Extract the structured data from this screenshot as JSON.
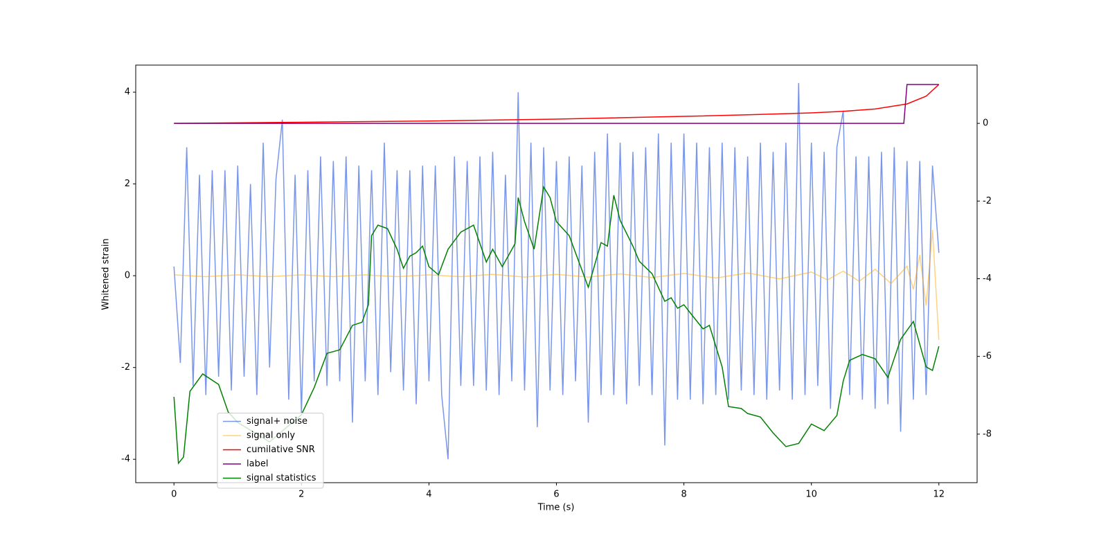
{
  "chart_data": {
    "type": "line",
    "xlabel": "Time (s)",
    "ylabel": "Whitened strain",
    "xlim": [
      -0.6,
      12.6
    ],
    "xticks": [
      0,
      2,
      4,
      6,
      8,
      10,
      12
    ],
    "ylim": [
      -4.51,
      4.59
    ],
    "yticks": [
      -4,
      -2,
      0,
      2,
      4
    ],
    "y2lim": [
      -9.25,
      1.5
    ],
    "y2ticks": [
      -8,
      -6,
      -4,
      -2,
      0
    ],
    "legend": "lower left",
    "series": [
      {
        "name": "signal+ noise",
        "color": "#4169e1",
        "opacity": 0.7,
        "x": [
          0,
          0.1,
          0.2,
          0.3,
          0.4,
          0.5,
          0.6,
          0.7,
          0.8,
          0.9,
          1,
          1.1,
          1.2,
          1.3,
          1.4,
          1.5,
          1.6,
          1.7,
          1.8,
          1.9,
          2,
          2.1,
          2.2,
          2.3,
          2.4,
          2.5,
          2.6,
          2.7,
          2.8,
          2.9,
          3,
          3.1,
          3.2,
          3.3,
          3.4,
          3.5,
          3.6,
          3.7,
          3.8,
          3.9,
          4,
          4.1,
          4.2,
          4.3,
          4.4,
          4.5,
          4.6,
          4.7,
          4.8,
          4.9,
          5,
          5.1,
          5.2,
          5.3,
          5.4,
          5.5,
          5.6,
          5.7,
          5.8,
          5.9,
          6,
          6.1,
          6.2,
          6.3,
          6.4,
          6.5,
          6.6,
          6.7,
          6.8,
          6.9,
          7,
          7.1,
          7.2,
          7.3,
          7.4,
          7.5,
          7.6,
          7.7,
          7.8,
          7.9,
          8,
          8.1,
          8.2,
          8.3,
          8.4,
          8.5,
          8.6,
          8.7,
          8.8,
          8.9,
          9,
          9.1,
          9.2,
          9.3,
          9.4,
          9.5,
          9.6,
          9.7,
          9.8,
          9.9,
          10,
          10.1,
          10.2,
          10.3,
          10.4,
          10.5,
          10.6,
          10.7,
          10.8,
          10.9,
          11,
          11.1,
          11.2,
          11.3,
          11.4,
          11.5,
          11.6,
          11.7,
          11.8,
          11.9,
          12
        ],
        "values": [
          0.2,
          -1.9,
          2.8,
          -2.4,
          2.2,
          -2.6,
          2.3,
          -2.2,
          2.3,
          -2.5,
          2.4,
          -2.2,
          2.0,
          -2.6,
          2.9,
          -2.0,
          2.1,
          3.4,
          -2.7,
          2.2,
          -3.0,
          2.3,
          -2.3,
          2.6,
          -2.4,
          2.5,
          -2.3,
          2.6,
          -3.2,
          2.4,
          -2.3,
          2.3,
          -2.6,
          2.9,
          -2.1,
          2.3,
          -2.5,
          2.3,
          -2.8,
          2.4,
          -2.3,
          2.4,
          -2.6,
          -4.0,
          2.6,
          -2.4,
          2.5,
          -2.4,
          2.6,
          -2.5,
          2.7,
          -2.6,
          2.2,
          -2.3,
          4.0,
          -2.5,
          2.9,
          -3.3,
          2.8,
          -2.5,
          2.5,
          -2.6,
          2.6,
          -2.3,
          2.4,
          -3.2,
          2.7,
          -2.6,
          3.1,
          -2.6,
          2.9,
          -2.8,
          2.7,
          -2.4,
          2.8,
          -2.6,
          3.1,
          -3.7,
          2.9,
          -2.7,
          3.1,
          -2.7,
          2.9,
          -2.8,
          2.8,
          -2.6,
          2.9,
          -2.7,
          2.8,
          -2.5,
          2.6,
          -2.6,
          2.9,
          -2.7,
          2.7,
          -2.5,
          2.9,
          -2.7,
          4.2,
          -2.6,
          2.9,
          -2.4,
          2.7,
          -2.9,
          2.8,
          3.6,
          -2.6,
          2.6,
          -2.7,
          2.6,
          -2.9,
          2.7,
          -2.8,
          2.8,
          -3.4,
          2.5,
          -2.7,
          2.5,
          -2.6,
          2.4,
          0.5
        ]
      },
      {
        "name": "signal only",
        "color": "#ffa500",
        "opacity": 0.5,
        "x": [
          0,
          0.5,
          1,
          1.5,
          2,
          2.5,
          3,
          3.5,
          4,
          4.5,
          5,
          5.5,
          6,
          6.5,
          7,
          7.5,
          8,
          8.5,
          9,
          9.5,
          10,
          10.25,
          10.5,
          10.75,
          11,
          11.25,
          11.5,
          11.6,
          11.7,
          11.8,
          11.9,
          12
        ],
        "values": [
          0.02,
          -0.02,
          0.02,
          -0.02,
          0.02,
          -0.02,
          0.02,
          -0.02,
          0.02,
          -0.02,
          0.03,
          -0.03,
          0.03,
          -0.03,
          0.04,
          -0.04,
          0.05,
          -0.05,
          0.06,
          -0.07,
          0.08,
          -0.09,
          0.1,
          -0.12,
          0.14,
          -0.17,
          0.21,
          -0.3,
          0.45,
          -0.65,
          1.0,
          -1.4
        ]
      },
      {
        "name": "cumilative SNR",
        "color": "#ff0000",
        "axis": "y2",
        "x": [
          0,
          2,
          4,
          6,
          8,
          9,
          10,
          10.5,
          11,
          11.5,
          11.8,
          12
        ],
        "values": [
          0,
          0.03,
          0.06,
          0.11,
          0.18,
          0.22,
          0.27,
          0.31,
          0.37,
          0.5,
          0.7,
          1.0
        ]
      },
      {
        "name": "label",
        "color": "#800080",
        "axis": "y2",
        "x": [
          0,
          11.45,
          11.5,
          12
        ],
        "values": [
          0,
          0,
          1,
          1
        ]
      },
      {
        "name": "signal statistics",
        "color": "#008000",
        "axis": "y2",
        "x": [
          0,
          0.07,
          0.15,
          0.25,
          0.45,
          0.7,
          0.85,
          1,
          1.5,
          2,
          2.2,
          2.4,
          2.6,
          2.8,
          2.95,
          3.05,
          3.1,
          3.2,
          3.35,
          3.5,
          3.6,
          3.7,
          3.8,
          3.9,
          4,
          4.15,
          4.3,
          4.5,
          4.7,
          4.9,
          5,
          5.15,
          5.35,
          5.4,
          5.5,
          5.65,
          5.8,
          5.9,
          6,
          6.2,
          6.5,
          6.7,
          6.8,
          6.9,
          7,
          7.2,
          7.3,
          7.5,
          7.7,
          7.8,
          7.9,
          8,
          8.1,
          8.3,
          8.4,
          8.6,
          8.7,
          8.9,
          9,
          9.2,
          9.4,
          9.6,
          9.8,
          10,
          10.2,
          10.4,
          10.5,
          10.6,
          10.8,
          11,
          11.2,
          11.4,
          11.6,
          11.8,
          11.9,
          12
        ],
        "values": [
          -7.04,
          -8.75,
          -8.59,
          -6.9,
          -6.45,
          -6.72,
          -7.43,
          -7.7,
          -8.2,
          -7.5,
          -6.8,
          -5.92,
          -5.83,
          -5.2,
          -5.12,
          -4.67,
          -2.89,
          -2.62,
          -2.71,
          -3.24,
          -3.73,
          -3.42,
          -3.33,
          -3.16,
          -3.69,
          -3.9,
          -3.24,
          -2.8,
          -2.62,
          -3.57,
          -3.24,
          -3.69,
          -3.1,
          -1.91,
          -2.53,
          -3.24,
          -1.64,
          -1.91,
          -2.53,
          -2.89,
          -4.22,
          -3.07,
          -3.16,
          -1.85,
          -2.5,
          -3.16,
          -3.55,
          -3.87,
          -4.58,
          -4.49,
          -4.76,
          -4.67,
          -4.88,
          -5.29,
          -5.2,
          -6.27,
          -7.29,
          -7.34,
          -7.47,
          -7.56,
          -7.97,
          -8.32,
          -8.24,
          -7.74,
          -7.91,
          -7.52,
          -6.63,
          -6.1,
          -5.95,
          -6.06,
          -6.54,
          -5.56,
          -5.1,
          -6.27,
          -6.36,
          -5.74
        ]
      }
    ]
  }
}
